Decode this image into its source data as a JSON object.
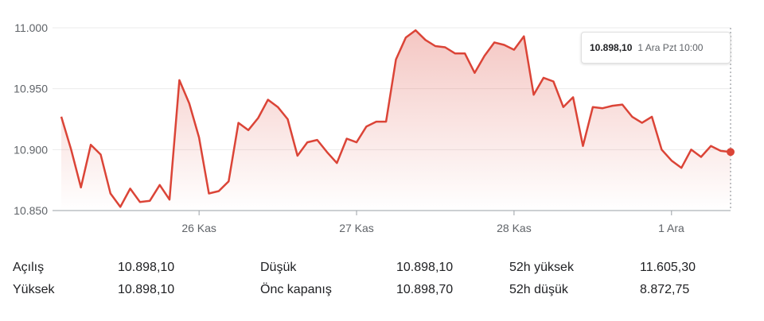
{
  "chart_data": {
    "type": "area",
    "color": "#db4437",
    "y_ticks": [
      "11.000",
      "10.950",
      "10.900",
      "10.850"
    ],
    "y_tick_values": [
      11000,
      10950,
      10900,
      10850
    ],
    "ylim": [
      10850,
      11000
    ],
    "x_tick_labels": [
      "26 Kas",
      "27 Kas",
      "28 Kas",
      "1 Ara"
    ],
    "x_tick_index": [
      14,
      30,
      46,
      62
    ],
    "grid": true,
    "values": [
      10927,
      10900,
      10869,
      10904,
      10896,
      10864,
      10853,
      10868,
      10857,
      10858,
      10871,
      10859,
      10957,
      10938,
      10910,
      10864,
      10866,
      10874,
      10922,
      10916,
      10926,
      10941,
      10935,
      10925,
      10895,
      10906,
      10908,
      10898,
      10889,
      10909,
      10906,
      10919,
      10923,
      10923,
      10974,
      10992,
      10998,
      10990,
      10985,
      10984,
      10979,
      10979,
      10963,
      10977,
      10988,
      10986,
      10982,
      10993,
      10945,
      10959,
      10956,
      10935,
      10943,
      10903,
      10935,
      10934,
      10936,
      10937,
      10927,
      10922,
      10927,
      10900,
      10891,
      10885,
      10900,
      10894,
      10903,
      10899,
      10898.1
    ]
  },
  "tooltip": {
    "value": "10.898,10",
    "time": "1 Ara Pzt 10:00"
  },
  "stats": [
    {
      "label": "Açılış",
      "value": "10.898,10"
    },
    {
      "label": "Yüksek",
      "value": "10.898,10"
    },
    {
      "label": "Düşük",
      "value": "10.898,10"
    },
    {
      "label": "Önc kapanış",
      "value": "10.898,70"
    },
    {
      "label": "52h yüksek",
      "value": "11.605,30"
    },
    {
      "label": "52h düşük",
      "value": "8.872,75"
    }
  ]
}
